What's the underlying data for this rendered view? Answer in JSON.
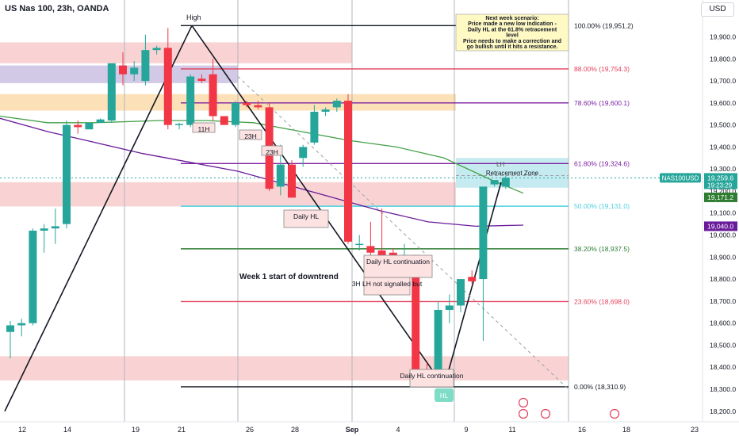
{
  "header": {
    "symbol_title": "US Nas 100, 23h, OANDA",
    "currency_button": "USD"
  },
  "colors": {
    "up": "#26a69a",
    "down": "#f23645",
    "fib_dark": "#131722",
    "fib_red": "#e23f5a",
    "fib_purple": "#7b1fa2",
    "fib_green": "#2e7d32",
    "fib_teal": "#4dd0e1",
    "ma_green": "#43a047",
    "ma_purple": "#6a1b9a"
  },
  "chart_data": {
    "type": "candlestick",
    "symbol": "US Nas 100",
    "timeframe": "23h",
    "source": "OANDA",
    "y_axis": {
      "ylim": [
        18150,
        20060
      ],
      "ticks": [
        "19,900.0",
        "19,800.0",
        "19,700.0",
        "19,600.0",
        "19,500.0",
        "19,400.0",
        "19,300.0",
        "19,200.0",
        "19,100.0",
        "19,000.0",
        "18,900.0",
        "18,800.0",
        "18,700.0",
        "18,600.0",
        "18,500.0",
        "18,400.0",
        "18,300.0",
        "18,200.0"
      ]
    },
    "x_axis": {
      "ticks": [
        "12",
        "14",
        "19",
        "21",
        "26",
        "28",
        "Sep",
        "4",
        "9",
        "11",
        "16",
        "18",
        "23"
      ]
    },
    "candles": [
      [
        18560,
        18610,
        18440,
        18590
      ],
      [
        18590,
        18620,
        18540,
        18600
      ],
      [
        18600,
        19030,
        18590,
        19020
      ],
      [
        19020,
        19050,
        18920,
        19030
      ],
      [
        19030,
        19120,
        18960,
        19040
      ],
      [
        19050,
        19520,
        19030,
        19500
      ],
      [
        19500,
        19520,
        19460,
        19490
      ],
      [
        19480,
        19510,
        19480,
        19510
      ],
      [
        19510,
        19530,
        19510,
        19525
      ],
      [
        19520,
        19780,
        19510,
        19780
      ],
      [
        19770,
        19830,
        19680,
        19730
      ],
      [
        19730,
        19790,
        19700,
        19760
      ],
      [
        19700,
        19910,
        19680,
        19840
      ],
      [
        19840,
        19860,
        19820,
        19850
      ],
      [
        19850,
        19940,
        19480,
        19500
      ],
      [
        19500,
        19510,
        19480,
        19505
      ],
      [
        19500,
        19730,
        19490,
        19720
      ],
      [
        19710,
        19730,
        19690,
        19700
      ],
      [
        19730,
        19800,
        19520,
        19540
      ],
      [
        19540,
        19540,
        19500,
        19500
      ],
      [
        19500,
        19610,
        19490,
        19600
      ],
      [
        19600,
        19610,
        19580,
        19590
      ],
      [
        19590,
        19610,
        19570,
        19580
      ],
      [
        19580,
        19600,
        19200,
        19210
      ],
      [
        19220,
        19410,
        19180,
        19320
      ],
      [
        19320,
        19340,
        19180,
        19170
      ],
      [
        19350,
        19410,
        19310,
        19400
      ],
      [
        19420,
        19590,
        19410,
        19560
      ],
      [
        19560,
        19580,
        19540,
        19570
      ],
      [
        19580,
        19620,
        19560,
        19610
      ],
      [
        19610,
        19640,
        18960,
        18970
      ],
      [
        18960,
        19000,
        18930,
        18960
      ],
      [
        18950,
        19060,
        18900,
        18920
      ],
      [
        18930,
        19120,
        18900,
        18900
      ],
      [
        18920,
        18940,
        18890,
        18880
      ],
      [
        18890,
        18960,
        18860,
        18910
      ],
      [
        18910,
        18910,
        18380,
        18390
      ],
      [
        18380,
        18420,
        18310,
        18340
      ],
      [
        18350,
        18700,
        18340,
        18660
      ],
      [
        18660,
        18730,
        18600,
        18680
      ],
      [
        18680,
        18790,
        18650,
        18800
      ],
      [
        18810,
        18840,
        18780,
        18790
      ],
      [
        18800,
        19210,
        18520,
        19220
      ],
      [
        19230,
        19240,
        19220,
        19250
      ],
      [
        19220,
        19270,
        19210,
        19260
      ]
    ],
    "fib_levels": [
      {
        "label": "100.00% (19,951.2)",
        "value": 19951.2
      },
      {
        "label": "88.00% (19,754.3)",
        "value": 19754.3
      },
      {
        "label": "78.60% (19,600.1)",
        "value": 19600.1
      },
      {
        "label": "61.80% (19,324.6)",
        "value": 19324.6
      },
      {
        "label": "50.00% (19,131.0)",
        "value": 19131.0
      },
      {
        "label": "38.20% (18,937.5)",
        "value": 18937.5
      },
      {
        "label": "23.60% (18,698.0)",
        "value": 18698.0
      },
      {
        "label": "0.00% (18,310.9)",
        "value": 18310.9
      }
    ],
    "price_tags": [
      {
        "label": "NAS100USD",
        "value": 19259.6,
        "text": "19,259.6",
        "sub": "19:23:29"
      },
      {
        "label": "",
        "value": 19171.2,
        "text": "19,171.2"
      },
      {
        "label": "",
        "value": 19040.0,
        "text": "19,040.0"
      }
    ],
    "annotations": {
      "high": "High",
      "lh": "LH",
      "hl": "HL",
      "box_11h": "11H",
      "box_23h_a": "23H",
      "box_23h_b": "23H",
      "daily_hl": "Daily HL",
      "daily_hl_cont": "Daily HL continuation",
      "lh_not_signalled": "3H LH not signalled but",
      "daily_hl_cont_bottom": "Daily HL continuation",
      "week1": "Week 1 start of downtrend",
      "retracement_zone": "Retracement Zone",
      "scenario_title": "Next week scenario:",
      "scenario_line1": "Price made a new low indication -",
      "scenario_line2": "Daily HL at the 61.8% retracement",
      "scenario_line3": "level",
      "scenario_line4": "Price needs to make a correction and",
      "scenario_line5": "go bullish until it hits a resistance."
    }
  }
}
